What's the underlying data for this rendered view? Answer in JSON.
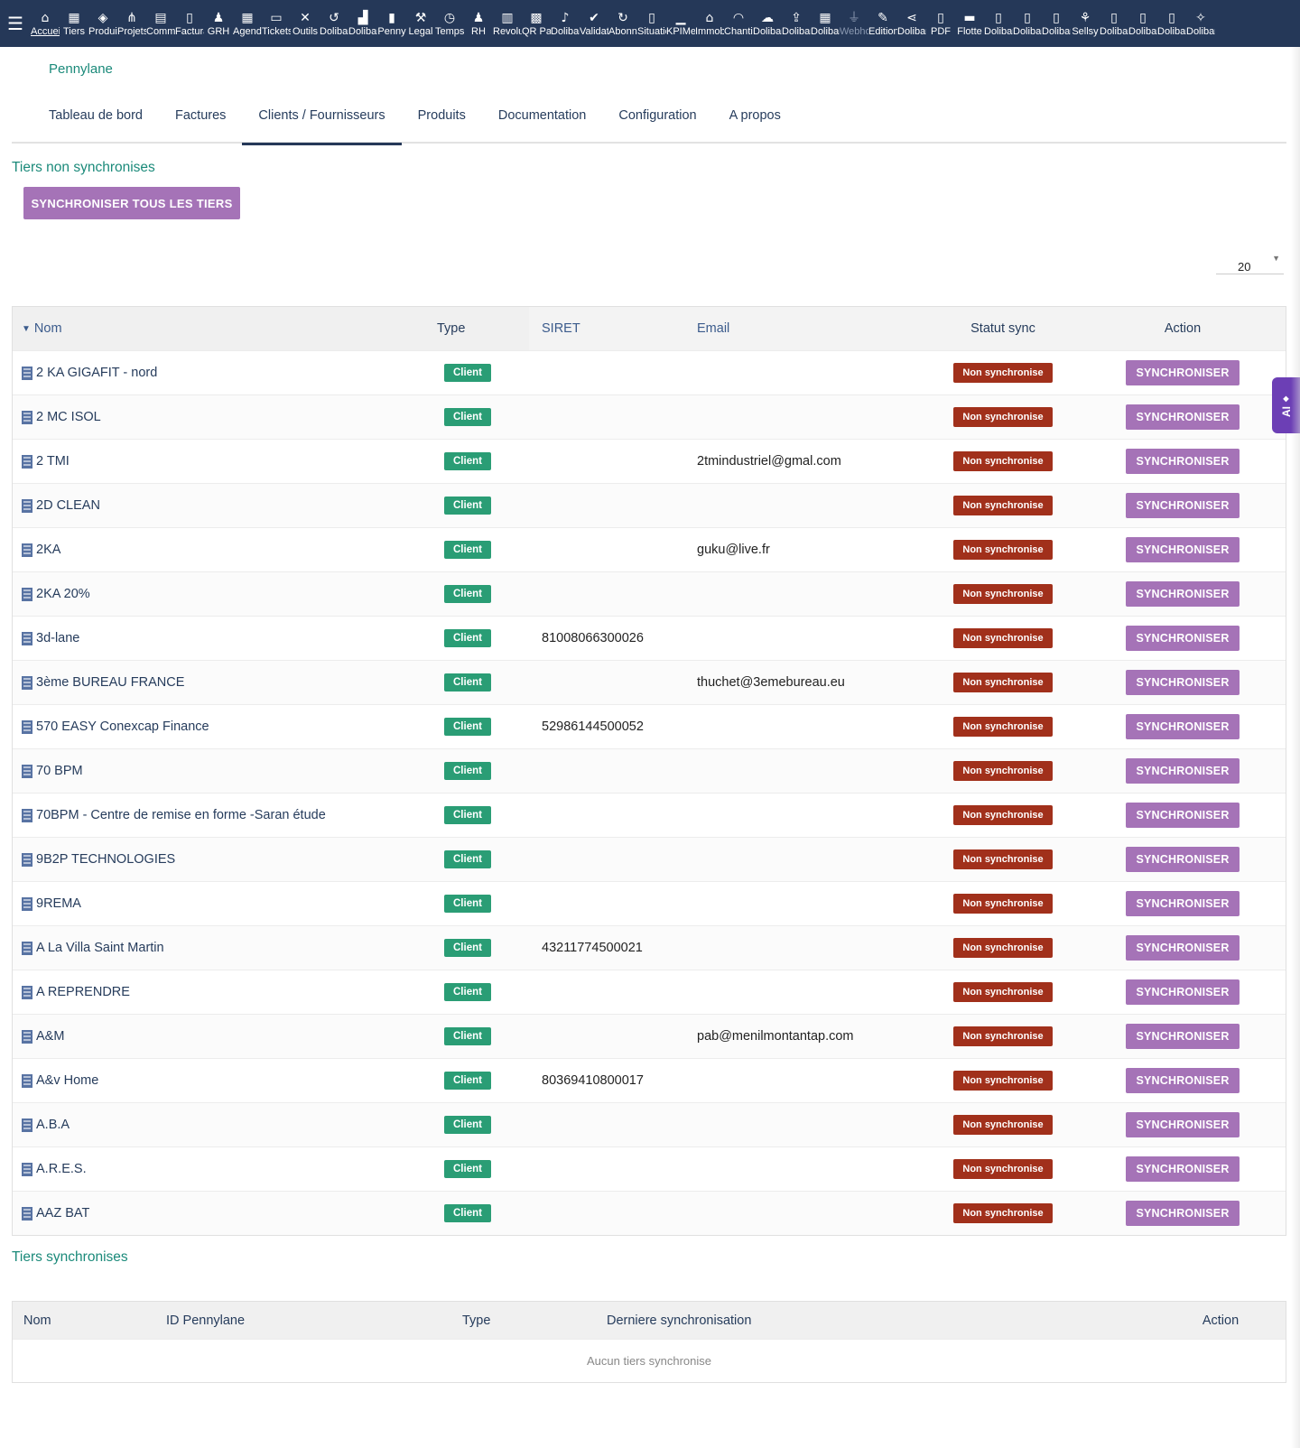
{
  "topbar": {
    "modules": [
      {
        "label": "Accueil",
        "icon": "home-icon",
        "glyph": "⌂"
      },
      {
        "label": "Tiers",
        "icon": "building-icon",
        "glyph": "▦"
      },
      {
        "label": "Produits",
        "icon": "cube-icon",
        "glyph": "◈"
      },
      {
        "label": "Projets",
        "icon": "sitemap-icon",
        "glyph": "⋔"
      },
      {
        "label": "Commercial",
        "icon": "briefcase-icon",
        "glyph": "▤"
      },
      {
        "label": "Facturation",
        "icon": "invoice-icon",
        "glyph": "▯"
      },
      {
        "label": "GRH",
        "icon": "user-icon",
        "glyph": "♟"
      },
      {
        "label": "Agenda",
        "icon": "calendar-icon",
        "glyph": "▦"
      },
      {
        "label": "Tickets",
        "icon": "ticket-icon",
        "glyph": "▭"
      },
      {
        "label": "Outils",
        "icon": "tools-icon",
        "glyph": "✕"
      },
      {
        "label": "Dolibarr",
        "icon": "undo-icon",
        "glyph": "↺"
      },
      {
        "label": "Dolibarr",
        "icon": "shop-icon",
        "glyph": "▟"
      },
      {
        "label": "Penny",
        "icon": "file-icon",
        "glyph": "▮"
      },
      {
        "label": "Legal",
        "icon": "gavel-icon",
        "glyph": "⚒"
      },
      {
        "label": "Temps",
        "icon": "clock-icon",
        "glyph": "◷"
      },
      {
        "label": "RH",
        "icon": "users-icon",
        "glyph": "♟"
      },
      {
        "label": "Revolut",
        "icon": "bank-icon",
        "glyph": "▥"
      },
      {
        "label": "QR Pay",
        "icon": "qrcode-icon",
        "glyph": "▩"
      },
      {
        "label": "Dolibarr",
        "icon": "bell-icon",
        "glyph": "♪"
      },
      {
        "label": "Validation",
        "icon": "check-double-icon",
        "glyph": "✔"
      },
      {
        "label": "Abonnements",
        "icon": "sync-icon",
        "glyph": "↻"
      },
      {
        "label": "Situations",
        "icon": "file-icon",
        "glyph": "▯"
      },
      {
        "label": "KPIMetrics",
        "icon": "bar-chart-icon",
        "glyph": "▁"
      },
      {
        "label": "Immobilier",
        "icon": "house-icon",
        "glyph": "⌂"
      },
      {
        "label": "Chantiers",
        "icon": "hard-hat-icon",
        "glyph": "◠"
      },
      {
        "label": "Dolibarr",
        "icon": "cloud-icon",
        "glyph": "☁"
      },
      {
        "label": "Dolibarr",
        "icon": "upload-icon",
        "glyph": "⇪"
      },
      {
        "label": "Dolibarr",
        "icon": "building-icon",
        "glyph": "▦"
      },
      {
        "label": "Webhooks",
        "icon": "plug-icon",
        "glyph": "⏚"
      },
      {
        "label": "Editions",
        "icon": "edit-icon",
        "glyph": "✎"
      },
      {
        "label": "Dolibarr",
        "icon": "share-icon",
        "glyph": "⋖"
      },
      {
        "label": "PDF",
        "icon": "pdf-icon",
        "glyph": "▯"
      },
      {
        "label": "Flotte",
        "icon": "car-icon",
        "glyph": "▬"
      },
      {
        "label": "Dolibarr",
        "icon": "file-icon",
        "glyph": "▯"
      },
      {
        "label": "Dolibarr",
        "icon": "file-icon",
        "glyph": "▯"
      },
      {
        "label": "Dolibarr",
        "icon": "file-icon",
        "glyph": "▯"
      },
      {
        "label": "Sellsy",
        "icon": "handshake-icon",
        "glyph": "⚘"
      },
      {
        "label": "Dolibarr",
        "icon": "file-icon",
        "glyph": "▯"
      },
      {
        "label": "Dolibarr",
        "icon": "file-icon",
        "glyph": "▯"
      },
      {
        "label": "Dolibarr",
        "icon": "file-icon",
        "glyph": "▯"
      },
      {
        "label": "Dolibarr",
        "icon": "magic-icon",
        "glyph": "✧"
      }
    ]
  },
  "module_title": "Pennylane",
  "tabs": [
    "Tableau de bord",
    "Factures",
    "Clients / Fournisseurs",
    "Produits",
    "Documentation",
    "Configuration",
    "A propos"
  ],
  "active_tab": "Clients / Fournisseurs",
  "unsynced": {
    "title": "Tiers non synchronises",
    "sync_all_label": "SYNCHRONISER TOUS LES TIERS",
    "limit_value": "20",
    "columns": {
      "nom": "Nom",
      "type": "Type",
      "siret": "SIRET",
      "email": "Email",
      "statut": "Statut sync",
      "action": "Action"
    },
    "type_badge": "Client",
    "status_badge": "Non synchronise",
    "action_label": "SYNCHRONISER",
    "rows": [
      {
        "nom": "2 KA GIGAFIT - nord",
        "siret": "",
        "email": ""
      },
      {
        "nom": "2 MC ISOL",
        "siret": "",
        "email": ""
      },
      {
        "nom": "2 TMI",
        "siret": "",
        "email": "2tmindustriel@gmal.com"
      },
      {
        "nom": "2D CLEAN",
        "siret": "",
        "email": ""
      },
      {
        "nom": "2KA",
        "siret": "",
        "email": "guku@live.fr"
      },
      {
        "nom": "2KA 20%",
        "siret": "",
        "email": ""
      },
      {
        "nom": "3d-lane",
        "siret": "81008066300026",
        "email": ""
      },
      {
        "nom": "3ème BUREAU FRANCE",
        "siret": "",
        "email": "thuchet@3emebureau.eu"
      },
      {
        "nom": "570 EASY Conexcap Finance",
        "siret": "52986144500052",
        "email": ""
      },
      {
        "nom": "70 BPM",
        "siret": "",
        "email": ""
      },
      {
        "nom": "70BPM - Centre de remise en forme -Saran étude",
        "siret": "",
        "email": ""
      },
      {
        "nom": "9B2P TECHNOLOGIES",
        "siret": "",
        "email": ""
      },
      {
        "nom": "9REMA",
        "siret": "",
        "email": ""
      },
      {
        "nom": "A La Villa Saint Martin",
        "siret": "43211774500021",
        "email": ""
      },
      {
        "nom": "A REPRENDRE",
        "siret": "",
        "email": ""
      },
      {
        "nom": "A&M",
        "siret": "",
        "email": "pab@menilmontantap.com"
      },
      {
        "nom": "A&v Home",
        "siret": "80369410800017",
        "email": ""
      },
      {
        "nom": "A.B.A",
        "siret": "",
        "email": ""
      },
      {
        "nom": "A.R.E.S.",
        "siret": "",
        "email": ""
      },
      {
        "nom": "AAZ BAT",
        "siret": "",
        "email": ""
      }
    ]
  },
  "synced": {
    "title": "Tiers synchronises",
    "columns": {
      "nom": "Nom",
      "id": "ID Pennylane",
      "type": "Type",
      "last_sync": "Derniere synchronisation",
      "action": "Action"
    },
    "empty_text": "Aucun tiers synchronise"
  },
  "ai_tab": {
    "label": "AI",
    "glyph": "◆"
  },
  "colors": {
    "navbar": "#253858",
    "accent_teal": "#1b8a7a",
    "button_purple": "#a573b7",
    "badge_green": "#2a9d75",
    "badge_red": "#a1301b",
    "ai_purple": "#6c3fb5"
  }
}
